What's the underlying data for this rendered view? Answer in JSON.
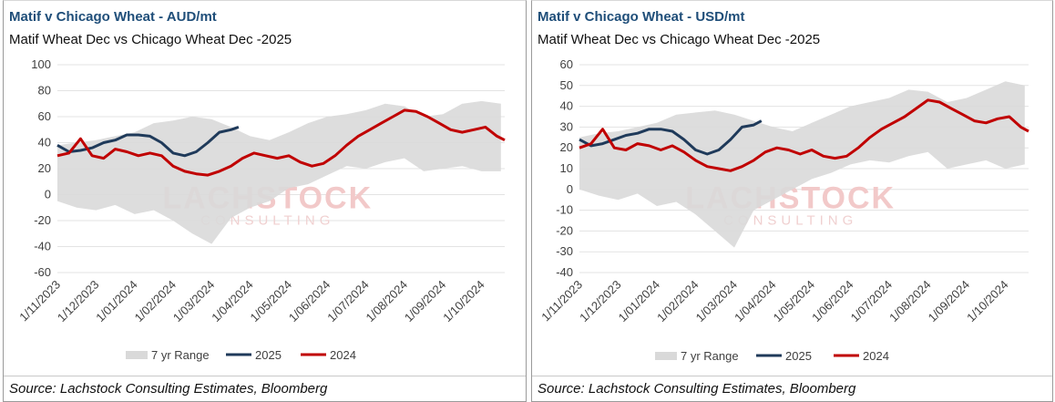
{
  "panels": [
    {
      "title": "Matif v Chicago Wheat - AUD/mt",
      "subtitle": "Matif Wheat Dec vs Chicago Wheat Dec -2025",
      "source": "Source: Lachstock Consulting Estimates, Bloomberg",
      "watermark": {
        "main": "LACHSTOCK",
        "sub": "CONSULTING"
      }
    },
    {
      "title": "Matif v Chicago Wheat - USD/mt",
      "subtitle": "Matif Wheat Dec vs Chicago Wheat Dec -2025",
      "source": "Source: Lachstock Consulting Estimates, Bloomberg",
      "watermark": {
        "main": "LACHSTOCK",
        "sub": "CONSULTING"
      }
    }
  ],
  "chart_data": [
    {
      "type": "line",
      "title": "Matif v Chicago Wheat - AUD/mt",
      "subtitle": "Matif Wheat Dec vs Chicago Wheat Dec -2025",
      "xlabel": "",
      "ylabel": "",
      "ylim": [
        -60,
        100
      ],
      "yticks": [
        -60,
        -40,
        -20,
        0,
        20,
        40,
        60,
        80,
        100
      ],
      "xticks": [
        "1/11/2023",
        "1/12/2023",
        "1/01/2024",
        "1/02/2024",
        "1/03/2024",
        "1/04/2024",
        "1/05/2024",
        "1/06/2024",
        "1/07/2024",
        "1/08/2024",
        "1/09/2024",
        "1/10/2024"
      ],
      "grid": true,
      "legend": {
        "position": "bottom",
        "entries": [
          "7 yr Range",
          "2025",
          "2024"
        ]
      },
      "colors": {
        "range": "#d9d9d9",
        "2025": "#1f3a5a",
        "2024": "#c00000"
      },
      "range": {
        "name": "7 yr Range",
        "x": [
          0,
          0.5,
          1,
          1.5,
          2,
          2.5,
          3,
          3.5,
          4,
          4.5,
          5,
          5.5,
          6,
          6.5,
          7,
          7.5,
          8,
          8.5,
          9,
          9.5,
          10,
          10.5,
          11,
          11.5
        ],
        "low": [
          -5,
          -10,
          -12,
          -8,
          -15,
          -12,
          -20,
          -30,
          -38,
          -18,
          -10,
          -5,
          5,
          8,
          15,
          22,
          20,
          25,
          28,
          18,
          20,
          22,
          18,
          18
        ],
        "high": [
          38,
          40,
          42,
          45,
          48,
          55,
          57,
          60,
          58,
          52,
          45,
          42,
          48,
          55,
          60,
          62,
          65,
          70,
          68,
          60,
          62,
          70,
          72,
          70
        ]
      },
      "series": [
        {
          "name": "2025",
          "x": [
            0,
            0.3,
            0.6,
            0.9,
            1.2,
            1.5,
            1.8,
            2.1,
            2.4,
            2.7,
            3.0,
            3.3,
            3.6,
            3.9,
            4.2,
            4.5,
            4.7
          ],
          "values": [
            38,
            33,
            34,
            36,
            40,
            42,
            46,
            46,
            45,
            40,
            32,
            30,
            33,
            40,
            48,
            50,
            52
          ]
        },
        {
          "name": "2024",
          "x": [
            0,
            0.3,
            0.6,
            0.9,
            1.2,
            1.5,
            1.8,
            2.1,
            2.4,
            2.7,
            3.0,
            3.3,
            3.6,
            3.9,
            4.2,
            4.5,
            4.8,
            5.1,
            5.4,
            5.7,
            6.0,
            6.3,
            6.6,
            6.9,
            7.2,
            7.5,
            7.8,
            8.1,
            8.4,
            8.7,
            9.0,
            9.3,
            9.6,
            9.9,
            10.2,
            10.5,
            10.8,
            11.1,
            11.4,
            11.6
          ],
          "values": [
            30,
            32,
            43,
            30,
            28,
            35,
            33,
            30,
            32,
            30,
            22,
            18,
            16,
            15,
            18,
            22,
            28,
            32,
            30,
            28,
            30,
            25,
            22,
            24,
            30,
            38,
            45,
            50,
            55,
            60,
            65,
            64,
            60,
            55,
            50,
            48,
            50,
            52,
            45,
            42
          ]
        }
      ]
    },
    {
      "type": "line",
      "title": "Matif v Chicago Wheat - USD/mt",
      "subtitle": "Matif Wheat Dec vs Chicago Wheat Dec -2025",
      "xlabel": "",
      "ylabel": "",
      "ylim": [
        -40,
        60
      ],
      "yticks": [
        -40,
        -30,
        -20,
        -10,
        0,
        10,
        20,
        30,
        40,
        50,
        60
      ],
      "xticks": [
        "1/11/2023",
        "1/12/2023",
        "1/01/2024",
        "1/02/2024",
        "1/03/2024",
        "1/04/2024",
        "1/05/2024",
        "1/06/2024",
        "1/07/2024",
        "1/08/2024",
        "1/09/2024",
        "1/10/2024"
      ],
      "grid": true,
      "legend": {
        "position": "bottom",
        "entries": [
          "7 yr Range",
          "2025",
          "2024"
        ]
      },
      "colors": {
        "range": "#d9d9d9",
        "2025": "#1f3a5a",
        "2024": "#c00000"
      },
      "range": {
        "name": "7 yr Range",
        "x": [
          0,
          0.5,
          1,
          1.5,
          2,
          2.5,
          3,
          3.5,
          4,
          4.5,
          5,
          5.5,
          6,
          6.5,
          7,
          7.5,
          8,
          8.5,
          9,
          9.5,
          10,
          10.5,
          11,
          11.5
        ],
        "low": [
          0,
          -3,
          -5,
          -2,
          -8,
          -6,
          -12,
          -20,
          -28,
          -10,
          -5,
          0,
          5,
          8,
          12,
          14,
          13,
          16,
          18,
          10,
          12,
          14,
          10,
          12
        ],
        "high": [
          25,
          27,
          28,
          30,
          32,
          36,
          37,
          38,
          36,
          33,
          30,
          28,
          32,
          36,
          40,
          42,
          44,
          48,
          47,
          42,
          44,
          48,
          52,
          50
        ]
      },
      "series": [
        {
          "name": "2025",
          "x": [
            0,
            0.3,
            0.6,
            0.9,
            1.2,
            1.5,
            1.8,
            2.1,
            2.4,
            2.7,
            3.0,
            3.3,
            3.6,
            3.9,
            4.2,
            4.5,
            4.7
          ],
          "values": [
            24,
            21,
            22,
            24,
            26,
            27,
            29,
            29,
            28,
            24,
            19,
            17,
            19,
            24,
            30,
            31,
            33
          ]
        },
        {
          "name": "2024",
          "x": [
            0,
            0.3,
            0.6,
            0.9,
            1.2,
            1.5,
            1.8,
            2.1,
            2.4,
            2.7,
            3.0,
            3.3,
            3.6,
            3.9,
            4.2,
            4.5,
            4.8,
            5.1,
            5.4,
            5.7,
            6.0,
            6.3,
            6.6,
            6.9,
            7.2,
            7.5,
            7.8,
            8.1,
            8.4,
            8.7,
            9.0,
            9.3,
            9.6,
            9.9,
            10.2,
            10.5,
            10.8,
            11.1,
            11.4,
            11.6
          ],
          "values": [
            20,
            22,
            29,
            20,
            19,
            22,
            21,
            19,
            21,
            18,
            14,
            11,
            10,
            9,
            11,
            14,
            18,
            20,
            19,
            17,
            19,
            16,
            15,
            16,
            20,
            25,
            29,
            32,
            35,
            39,
            43,
            42,
            39,
            36,
            33,
            32,
            34,
            35,
            30,
            28
          ]
        }
      ]
    }
  ]
}
